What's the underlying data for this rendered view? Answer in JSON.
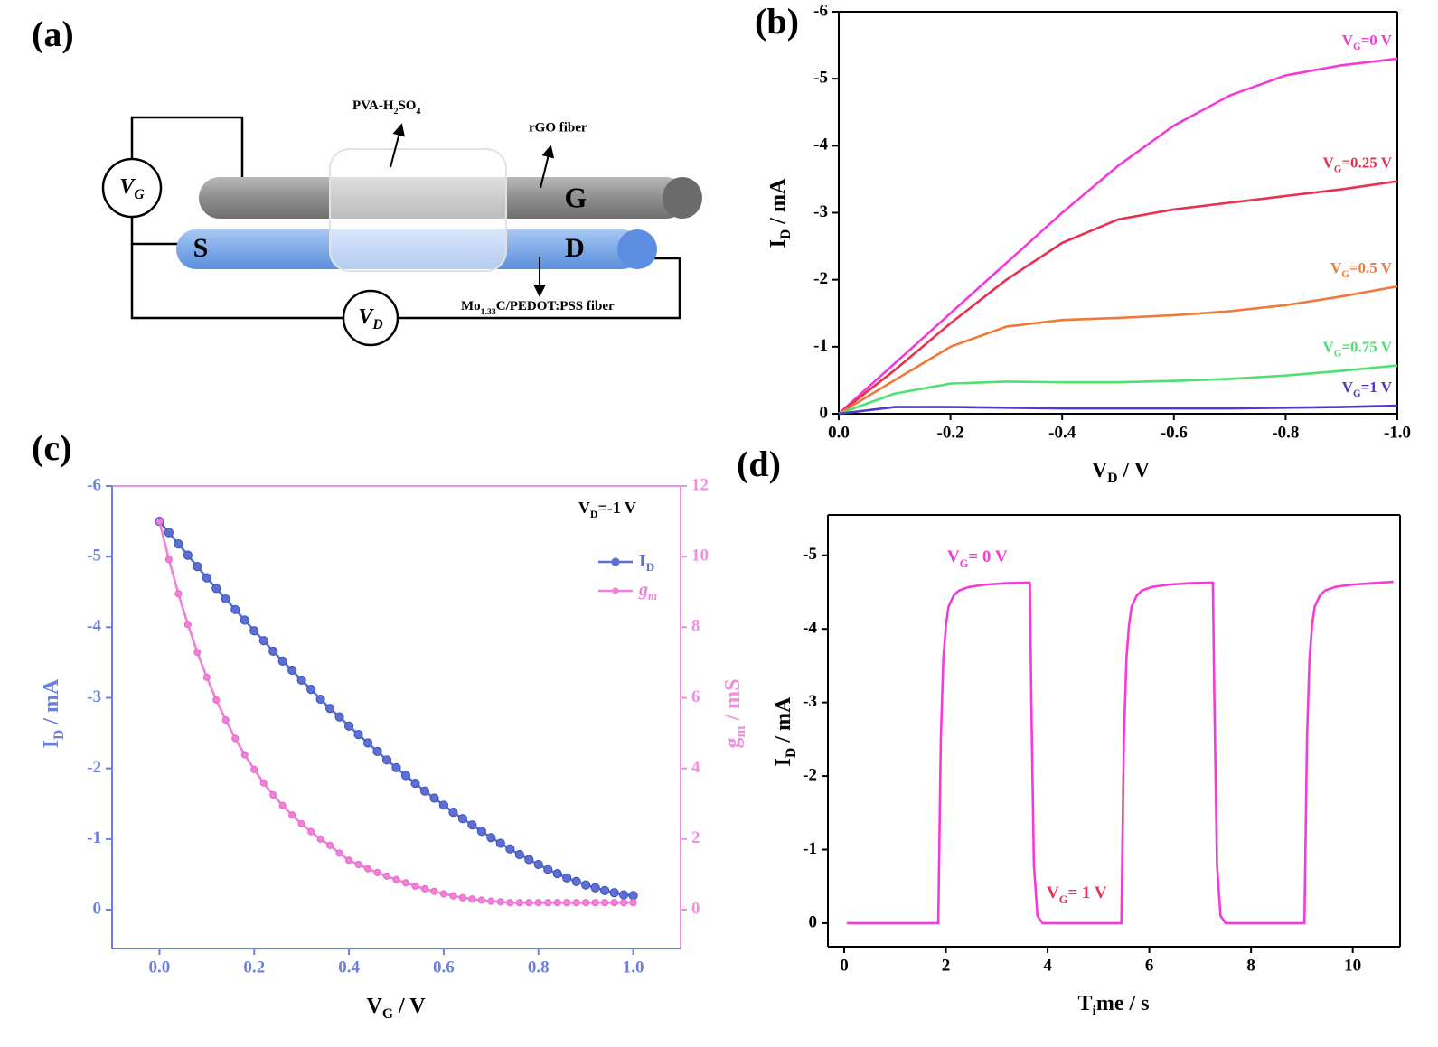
{
  "panel_labels": [
    "(a)",
    "(b)",
    "(c)",
    "(d)"
  ],
  "diagram": {
    "electrolyte": "PVA-H2SO4",
    "gate_fiber": "rGO fiber",
    "gate": "G",
    "source": "S",
    "drain": "D",
    "channel_fiber": "Mo1.33C/PEDOT:PSS fiber",
    "gate_voltage": "VG",
    "drain_voltage": "VD"
  },
  "chart_data": [
    {
      "type": "line",
      "x_label": "VD / V",
      "y_label": "ID / mA",
      "x": [
        0,
        -0.1,
        -0.2,
        -0.3,
        -0.4,
        -0.5,
        -0.6,
        -0.7,
        -0.8,
        -0.9,
        -1
      ],
      "xlim": [
        0,
        -1
      ],
      "ylim": [
        0,
        -6
      ],
      "xticks": [
        {
          "value": 0,
          "label": "0.0"
        },
        -0.2,
        -0.4,
        -0.6,
        -0.8,
        {
          "value": -1,
          "label": "-1.0"
        }
      ],
      "yticks": [
        0,
        -1,
        -2,
        -3,
        -4,
        -5,
        -6
      ],
      "series": [
        {
          "name": "VG=0 V",
          "color": "#f53ad8",
          "values": [
            0,
            -0.75,
            -1.5,
            -2.25,
            -3.0,
            -3.7,
            -4.3,
            -4.75,
            -5.05,
            -5.2,
            -5.3
          ]
        },
        {
          "name": "VG=0.25 V",
          "color": "#e83050",
          "values": [
            0,
            -0.65,
            -1.35,
            -2.0,
            -2.55,
            -2.9,
            -3.05,
            -3.15,
            -3.25,
            -3.35,
            -3.47
          ]
        },
        {
          "name": "VG=0.5 V",
          "color": "#f07838",
          "values": [
            0,
            -0.5,
            -1.0,
            -1.3,
            -1.4,
            -1.43,
            -1.47,
            -1.53,
            -1.62,
            -1.75,
            -1.9
          ]
        },
        {
          "name": "VG=0.75 V",
          "color": "#4ee070",
          "values": [
            0,
            -0.3,
            -0.45,
            -0.48,
            -0.47,
            -0.47,
            -0.49,
            -0.52,
            -0.57,
            -0.64,
            -0.72
          ]
        },
        {
          "name": "VG=1 V",
          "color": "#5038c8",
          "values": [
            0,
            -0.1,
            -0.1,
            -0.09,
            -0.08,
            -0.08,
            -0.08,
            -0.08,
            -0.09,
            -0.1,
            -0.12
          ]
        }
      ]
    },
    {
      "type": "line",
      "annotation": "VD=-1 V",
      "x_label": "VG / V",
      "y_label": "ID / mA",
      "y2_label": "gm / mS",
      "markers": true,
      "legend": "upper right",
      "x": [
        0,
        0.02,
        0.04,
        0.06,
        0.08,
        0.1,
        0.12,
        0.14,
        0.16,
        0.18,
        0.2,
        0.22,
        0.24,
        0.26,
        0.28,
        0.3,
        0.32,
        0.34,
        0.36,
        0.38,
        0.4,
        0.42,
        0.44,
        0.46,
        0.48,
        0.5,
        0.52,
        0.54,
        0.56,
        0.58,
        0.6,
        0.62,
        0.64,
        0.66,
        0.68,
        0.7,
        0.72,
        0.74,
        0.76,
        0.78,
        0.8,
        0.82,
        0.84,
        0.86,
        0.88,
        0.9,
        0.92,
        0.94,
        0.96,
        0.98,
        1
      ],
      "xlim": [
        -0.1,
        1.1
      ],
      "ylim": [
        0.55,
        -6
      ],
      "y2lim": [
        -1.1,
        12
      ],
      "xticks": [
        {
          "value": 0,
          "label": "0.0"
        },
        0.2,
        0.4,
        0.6,
        0.8,
        {
          "value": 1,
          "label": "1.0"
        }
      ],
      "yticks": [
        0,
        -1,
        -2,
        -3,
        -4,
        -5,
        -6
      ],
      "y2ticks": [
        0,
        2,
        4,
        6,
        8,
        10,
        12
      ],
      "series": [
        {
          "name": "ID",
          "color": "#5b6fd6",
          "values": [
            -5.5,
            -5.34,
            -5.18,
            -5.02,
            -4.86,
            -4.7,
            -4.55,
            -4.4,
            -4.25,
            -4.1,
            -3.95,
            -3.81,
            -3.66,
            -3.52,
            -3.39,
            -3.25,
            -3.12,
            -2.98,
            -2.85,
            -2.73,
            -2.6,
            -2.48,
            -2.36,
            -2.24,
            -2.12,
            -2.01,
            -1.9,
            -1.79,
            -1.68,
            -1.58,
            -1.48,
            -1.38,
            -1.29,
            -1.2,
            -1.11,
            -1.02,
            -0.94,
            -0.86,
            -0.78,
            -0.71,
            -0.64,
            -0.57,
            -0.51,
            -0.45,
            -0.4,
            -0.35,
            -0.31,
            -0.27,
            -0.24,
            -0.21,
            -0.2
          ]
        },
        {
          "name": "gm",
          "color": "#f27fd8",
          "axis": "y2",
          "values": [
            11.0,
            9.92,
            8.95,
            8.08,
            7.29,
            6.58,
            5.94,
            5.37,
            4.85,
            4.39,
            3.97,
            3.59,
            3.25,
            2.95,
            2.68,
            2.43,
            2.21,
            2.0,
            1.82,
            1.6,
            1.4,
            1.28,
            1.16,
            1.05,
            0.95,
            0.85,
            0.76,
            0.67,
            0.59,
            0.52,
            0.45,
            0.39,
            0.34,
            0.3,
            0.27,
            0.24,
            0.22,
            0.2,
            0.2,
            0.2,
            0.2,
            0.2,
            0.2,
            0.2,
            0.2,
            0.2,
            0.2,
            0.2,
            0.2,
            0.2,
            0.2
          ]
        }
      ]
    },
    {
      "type": "line",
      "x_label": "Time / s",
      "y_label": "ID / mA",
      "annotations": [
        "VG= 0 V",
        "VG= 1 V"
      ],
      "x": [
        0.05,
        1.85,
        1.9,
        1.95,
        2.0,
        2.05,
        2.15,
        2.25,
        2.45,
        2.75,
        3.15,
        3.62,
        3.65,
        3.68,
        3.73,
        3.8,
        3.9,
        5.45,
        5.5,
        5.55,
        5.6,
        5.65,
        5.75,
        5.85,
        6.05,
        6.35,
        6.75,
        7.22,
        7.25,
        7.28,
        7.33,
        7.4,
        7.5,
        9.05,
        9.1,
        9.15,
        9.2,
        9.25,
        9.35,
        9.45,
        9.65,
        9.95,
        10.35,
        10.8
      ],
      "xlim": [
        -0.32,
        10.93
      ],
      "ylim": [
        0.32,
        -5.55
      ],
      "xticks": [
        0,
        2,
        4,
        6,
        8,
        10
      ],
      "yticks": [
        0,
        -1,
        -2,
        -3,
        -4,
        -5
      ],
      "series": [
        {
          "color": "#f53ad8",
          "values": [
            0,
            0,
            -2.5,
            -3.6,
            -4.05,
            -4.3,
            -4.45,
            -4.52,
            -4.57,
            -4.6,
            -4.62,
            -4.63,
            -4.63,
            -3.0,
            -0.8,
            -0.1,
            0,
            0,
            -2.5,
            -3.6,
            -4.05,
            -4.3,
            -4.45,
            -4.52,
            -4.57,
            -4.6,
            -4.62,
            -4.63,
            -4.63,
            -3.0,
            -0.8,
            -0.1,
            0,
            0,
            -2.5,
            -3.6,
            -4.05,
            -4.3,
            -4.45,
            -4.52,
            -4.57,
            -4.6,
            -4.62,
            -4.64
          ]
        }
      ]
    }
  ]
}
